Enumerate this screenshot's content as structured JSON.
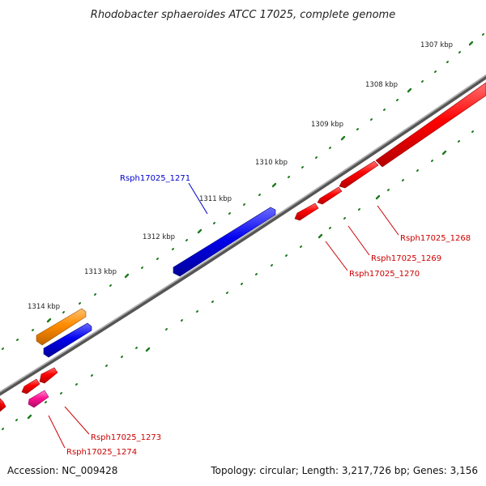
{
  "title": "Rhodobacter sphaeroides ATCC 17025, complete genome",
  "accession": "Accession: NC_009428",
  "summary": "Topology: circular; Length: 3,217,726 bp; Genes: 3,156",
  "colors": {
    "backbone": "#8a8a8a",
    "tick": "#1e7a1e",
    "forward_label": "#0000cc",
    "reverse_label": "#cc0000",
    "gene_red": "#ff0000",
    "gene_blue": "#0000ee",
    "gene_orange": "#ff8c00",
    "gene_pink": "#ff1493"
  },
  "scale_labels": [
    "1307 kbp",
    "1308 kbp",
    "1309 kbp",
    "1310 kbp",
    "1311 kbp",
    "1312 kbp",
    "1313 kbp",
    "1314 kbp"
  ],
  "gene_labels": [
    "Rsph17025_1271",
    "Rsph17025_1268",
    "Rsph17025_1269",
    "Rsph17025_1270",
    "Rsph17025_1273",
    "Rsph17025_1274"
  ]
}
